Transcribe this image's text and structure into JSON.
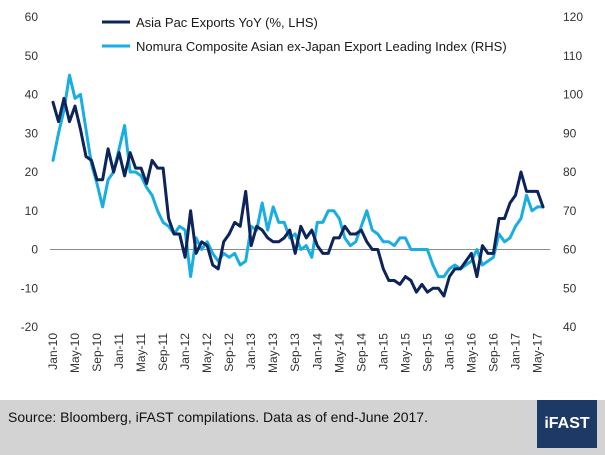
{
  "footer": {
    "source": "Source: Bloomberg, iFAST compilations. Data as of end-June 2017.",
    "brand": "iFAST"
  },
  "chart_data": {
    "type": "line",
    "x_tick_labels": [
      "Jan-10",
      "May-10",
      "Sep-10",
      "Jan-11",
      "May-11",
      "Sep-11",
      "Jan-12",
      "May-12",
      "Sep-12",
      "Jan-13",
      "May-13",
      "Sep-13",
      "Jan-14",
      "May-14",
      "Sep-14",
      "Jan-15",
      "May-15",
      "Sep-15",
      "Jan-16",
      "May-16",
      "Sep-16",
      "Jan-17",
      "May-17"
    ],
    "left_axis": {
      "min": -20,
      "max": 60,
      "ticks": [
        -20,
        -10,
        0,
        10,
        20,
        30,
        40,
        50,
        60
      ]
    },
    "right_axis": {
      "min": 40,
      "max": 120,
      "ticks": [
        40,
        50,
        60,
        70,
        80,
        90,
        100,
        110,
        120
      ]
    },
    "legend_position": "top",
    "grid": false,
    "series": [
      {
        "name": "Asia Pac Exports YoY (%, LHS)",
        "axis": "left",
        "color": "#0c2459",
        "x": [
          "2010-01",
          "2010-02",
          "2010-03",
          "2010-04",
          "2010-05",
          "2010-06",
          "2010-07",
          "2010-08",
          "2010-09",
          "2010-10",
          "2010-11",
          "2010-12",
          "2011-01",
          "2011-02",
          "2011-03",
          "2011-04",
          "2011-05",
          "2011-06",
          "2011-07",
          "2011-08",
          "2011-09",
          "2011-10",
          "2011-11",
          "2011-12",
          "2012-01",
          "2012-02",
          "2012-03",
          "2012-04",
          "2012-05",
          "2012-06",
          "2012-07",
          "2012-08",
          "2012-09",
          "2012-10",
          "2012-11",
          "2012-12",
          "2013-01",
          "2013-02",
          "2013-03",
          "2013-04",
          "2013-05",
          "2013-06",
          "2013-07",
          "2013-08",
          "2013-09",
          "2013-10",
          "2013-11",
          "2013-12",
          "2014-01",
          "2014-02",
          "2014-03",
          "2014-04",
          "2014-05",
          "2014-06",
          "2014-07",
          "2014-08",
          "2014-09",
          "2014-10",
          "2014-11",
          "2014-12",
          "2015-01",
          "2015-02",
          "2015-03",
          "2015-04",
          "2015-05",
          "2015-06",
          "2015-07",
          "2015-08",
          "2015-09",
          "2015-10",
          "2015-11",
          "2015-12",
          "2016-01",
          "2016-02",
          "2016-03",
          "2016-04",
          "2016-05",
          "2016-06",
          "2016-07",
          "2016-08",
          "2016-09",
          "2016-10",
          "2016-11",
          "2016-12",
          "2017-01",
          "2017-02",
          "2017-03",
          "2017-04",
          "2017-05",
          "2017-06"
        ],
        "values": [
          38,
          33,
          39,
          33,
          37,
          31,
          24,
          23,
          18,
          18,
          26,
          20,
          25,
          19,
          25,
          21,
          21,
          17,
          23,
          21,
          21,
          8,
          4,
          4,
          -2,
          10,
          -1,
          2,
          1,
          -4,
          -5,
          2,
          4,
          7,
          6,
          15,
          1,
          6,
          5,
          3,
          2,
          2,
          3,
          5,
          -1,
          6,
          3,
          5,
          1,
          -1,
          -1,
          3,
          3,
          6,
          4,
          4,
          5,
          2,
          0,
          0,
          -5,
          -8,
          -8,
          -9,
          -7,
          -8,
          -11,
          -9,
          -11,
          -10,
          -10,
          -12,
          -7,
          -5,
          -5,
          -3,
          -1,
          -7,
          1,
          -1,
          -1,
          8,
          8,
          12,
          14,
          20,
          15,
          15,
          15,
          11
        ]
      },
      {
        "name": "Nomura Composite Asian ex-Japan Export Leading Index (RHS)",
        "axis": "right",
        "color": "#19aee3",
        "x": [
          "2010-01",
          "2010-02",
          "2010-03",
          "2010-04",
          "2010-05",
          "2010-06",
          "2010-07",
          "2010-08",
          "2010-09",
          "2010-10",
          "2010-11",
          "2010-12",
          "2011-01",
          "2011-02",
          "2011-03",
          "2011-04",
          "2011-05",
          "2011-06",
          "2011-07",
          "2011-08",
          "2011-09",
          "2011-10",
          "2011-11",
          "2011-12",
          "2012-01",
          "2012-02",
          "2012-03",
          "2012-04",
          "2012-05",
          "2012-06",
          "2012-07",
          "2012-08",
          "2012-09",
          "2012-10",
          "2012-11",
          "2012-12",
          "2013-01",
          "2013-02",
          "2013-03",
          "2013-04",
          "2013-05",
          "2013-06",
          "2013-07",
          "2013-08",
          "2013-09",
          "2013-10",
          "2013-11",
          "2013-12",
          "2014-01",
          "2014-02",
          "2014-03",
          "2014-04",
          "2014-05",
          "2014-06",
          "2014-07",
          "2014-08",
          "2014-09",
          "2014-10",
          "2014-11",
          "2014-12",
          "2015-01",
          "2015-02",
          "2015-03",
          "2015-04",
          "2015-05",
          "2015-06",
          "2015-07",
          "2015-08",
          "2015-09",
          "2015-10",
          "2015-11",
          "2015-12",
          "2016-01",
          "2016-02",
          "2016-03",
          "2016-04",
          "2016-05",
          "2016-06",
          "2016-07",
          "2016-08",
          "2016-09",
          "2016-10",
          "2016-11",
          "2016-12",
          "2017-01",
          "2017-02",
          "2017-03",
          "2017-04",
          "2017-05",
          "2017-06"
        ],
        "values": [
          83,
          90,
          96,
          105,
          99,
          100,
          91,
          82,
          77,
          71,
          78,
          80,
          86,
          92,
          80,
          80,
          79,
          76,
          74,
          70,
          67,
          66,
          64,
          66,
          65,
          53,
          63,
          60,
          62,
          59,
          57,
          59,
          58,
          59,
          56,
          57,
          66,
          65,
          72,
          65,
          71,
          67,
          67,
          63,
          64,
          60,
          61,
          58,
          67,
          67,
          70,
          70,
          68,
          63,
          61,
          62,
          66,
          70,
          65,
          64,
          62,
          62,
          61,
          63,
          63,
          60,
          60,
          60,
          60,
          56,
          53,
          53,
          55,
          56,
          55,
          56,
          57,
          60,
          56,
          57,
          58,
          64,
          62,
          63,
          66,
          68,
          74,
          70,
          71,
          71
        ]
      }
    ]
  }
}
